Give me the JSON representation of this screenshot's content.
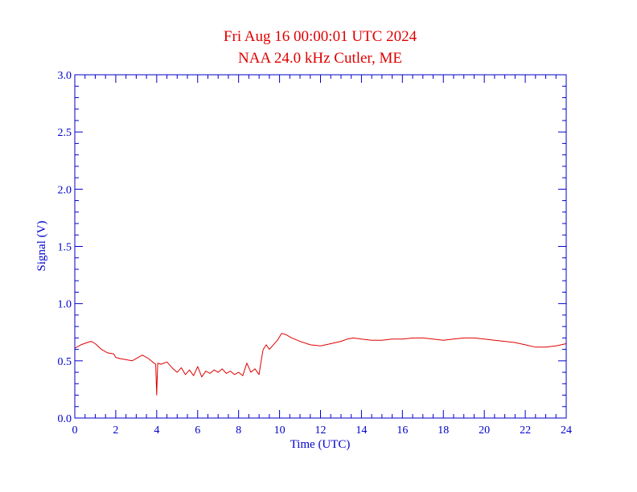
{
  "chart_data": {
    "type": "line",
    "title": "Fri Aug 16 00:00:01 UTC 2024",
    "subtitle": "NAA 24.0 kHz Cutler, ME",
    "xlabel": "Time (UTC)",
    "ylabel": "Signal (V)",
    "xlim": [
      0,
      24
    ],
    "ylim": [
      0,
      3.0
    ],
    "x_ticks": [
      "0",
      "2",
      "4",
      "6",
      "8",
      "10",
      "12",
      "14",
      "16",
      "18",
      "20",
      "22",
      "24"
    ],
    "y_ticks": [
      "0.0",
      "0.5",
      "1.0",
      "1.5",
      "2.0",
      "2.5",
      "3.0"
    ],
    "grid": false,
    "colors": {
      "axis": "#0000cc",
      "series": "#e00000",
      "title": "#e00000"
    },
    "series": [
      {
        "x": [
          0.0,
          0.3,
          0.6,
          0.8,
          1.0,
          1.3,
          1.6,
          1.9,
          2.0,
          2.2,
          2.5,
          2.8,
          3.1,
          3.3,
          3.6,
          3.8,
          3.95,
          4.0,
          4.05,
          4.2,
          4.5,
          4.8,
          5.0,
          5.2,
          5.4,
          5.6,
          5.8,
          6.0,
          6.2,
          6.4,
          6.6,
          6.8,
          7.0,
          7.2,
          7.4,
          7.6,
          7.8,
          8.0,
          8.2,
          8.4,
          8.6,
          8.8,
          9.0,
          9.1,
          9.2,
          9.35,
          9.5,
          9.7,
          9.9,
          10.1,
          10.3,
          10.6,
          11.0,
          11.5,
          12.0,
          12.5,
          13.0,
          13.3,
          13.6,
          14.0,
          14.5,
          15.0,
          15.5,
          16.0,
          16.5,
          17.0,
          17.5,
          18.0,
          18.5,
          19.0,
          19.5,
          20.0,
          20.5,
          21.0,
          21.5,
          22.0,
          22.5,
          23.0,
          23.5,
          24.0
        ],
        "y": [
          0.61,
          0.64,
          0.66,
          0.67,
          0.65,
          0.6,
          0.57,
          0.56,
          0.53,
          0.52,
          0.51,
          0.5,
          0.53,
          0.55,
          0.52,
          0.49,
          0.47,
          0.2,
          0.48,
          0.47,
          0.49,
          0.43,
          0.4,
          0.44,
          0.38,
          0.42,
          0.37,
          0.45,
          0.36,
          0.41,
          0.39,
          0.42,
          0.4,
          0.43,
          0.39,
          0.41,
          0.38,
          0.4,
          0.37,
          0.48,
          0.4,
          0.43,
          0.38,
          0.5,
          0.6,
          0.64,
          0.6,
          0.64,
          0.68,
          0.74,
          0.73,
          0.7,
          0.67,
          0.64,
          0.63,
          0.65,
          0.67,
          0.69,
          0.7,
          0.69,
          0.68,
          0.68,
          0.69,
          0.69,
          0.7,
          0.7,
          0.69,
          0.68,
          0.69,
          0.7,
          0.7,
          0.69,
          0.68,
          0.67,
          0.66,
          0.64,
          0.62,
          0.62,
          0.63,
          0.65
        ]
      }
    ]
  }
}
